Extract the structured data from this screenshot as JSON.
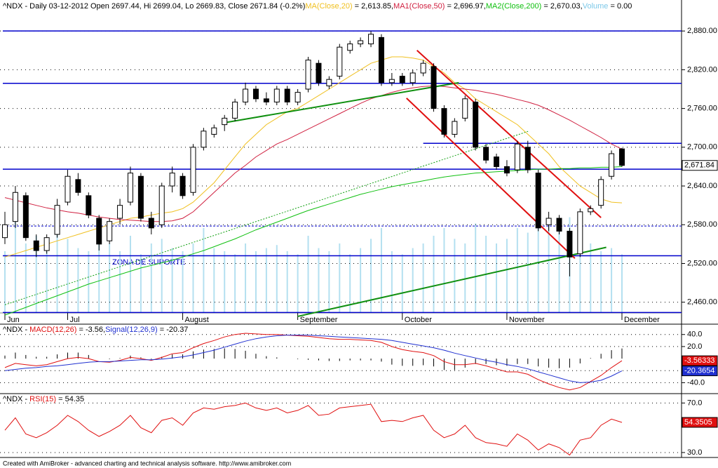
{
  "chart_data": [
    {
      "type": "candlestick",
      "title": "^NDX - Daily 03-12-2012 Open 2697.44, Hi 2699.04, Lo 2669.83, Close 2671.84 (-0.2%)",
      "categories": [
        "Jun",
        null,
        null,
        null,
        null,
        null,
        "Jul",
        null,
        null,
        null,
        null,
        null,
        null,
        null,
        null,
        null,
        null,
        "August",
        null,
        null,
        null,
        null,
        null,
        null,
        null,
        null,
        null,
        null,
        "September",
        null,
        null,
        null,
        null,
        null,
        null,
        null,
        null,
        null,
        "October",
        null,
        null,
        null,
        null,
        null,
        null,
        null,
        null,
        null,
        "November",
        null,
        null,
        null,
        null,
        null,
        null,
        null,
        null,
        null,
        null,
        "December"
      ],
      "open": [
        2560,
        2585,
        2625,
        2555,
        2540,
        2565,
        2615,
        2650,
        2625,
        2590,
        2555,
        2590,
        2615,
        2655,
        2590,
        2580,
        2640,
        2655,
        2630,
        2700,
        2720,
        2735,
        2745,
        2770,
        2790,
        2775,
        2770,
        2790,
        2770,
        2790,
        2830,
        2795,
        2810,
        2850,
        2860,
        2860,
        2870,
        2800,
        2810,
        2800,
        2815,
        2825,
        2760,
        2720,
        2745,
        2770,
        2700,
        2685,
        2670,
        2665,
        2700,
        2660,
        2580,
        2590,
        2570,
        2535,
        2600,
        2610,
        2655,
        2697.44
      ],
      "high": [
        2600,
        2640,
        2630,
        2565,
        2565,
        2620,
        2665,
        2660,
        2630,
        2595,
        2590,
        2620,
        2670,
        2660,
        2600,
        2645,
        2670,
        2660,
        2705,
        2730,
        2735,
        2750,
        2775,
        2800,
        2795,
        2785,
        2795,
        2795,
        2790,
        2840,
        2835,
        2810,
        2860,
        2865,
        2870,
        2880,
        2875,
        2815,
        2815,
        2820,
        2835,
        2830,
        2765,
        2745,
        2780,
        2775,
        2705,
        2690,
        2680,
        2710,
        2710,
        2665,
        2600,
        2595,
        2575,
        2605,
        2610,
        2655,
        2695,
        2699.04
      ],
      "low": [
        2550,
        2575,
        2555,
        2530,
        2535,
        2560,
        2610,
        2625,
        2590,
        2540,
        2550,
        2580,
        2610,
        2585,
        2565,
        2575,
        2630,
        2620,
        2625,
        2695,
        2715,
        2725,
        2740,
        2765,
        2770,
        2765,
        2765,
        2765,
        2765,
        2785,
        2795,
        2790,
        2805,
        2845,
        2855,
        2855,
        2795,
        2795,
        2795,
        2795,
        2810,
        2755,
        2715,
        2715,
        2740,
        2695,
        2675,
        2665,
        2655,
        2660,
        2660,
        2570,
        2570,
        2565,
        2500,
        2530,
        2595,
        2605,
        2650,
        2669.83
      ],
      "close": [
        2580,
        2630,
        2560,
        2540,
        2560,
        2610,
        2655,
        2630,
        2595,
        2550,
        2585,
        2610,
        2660,
        2590,
        2575,
        2640,
        2660,
        2625,
        2700,
        2725,
        2730,
        2745,
        2770,
        2790,
        2775,
        2770,
        2790,
        2770,
        2785,
        2835,
        2800,
        2805,
        2855,
        2860,
        2865,
        2875,
        2800,
        2805,
        2800,
        2815,
        2830,
        2760,
        2720,
        2740,
        2775,
        2700,
        2680,
        2670,
        2660,
        2705,
        2665,
        2575,
        2590,
        2570,
        2530,
        2600,
        2605,
        2650,
        2690,
        2671.84
      ],
      "last_value_label": "2,671.84",
      "color_up": "#ffffff",
      "color_down": "#000000",
      "overlays": [
        {
          "name": "MA(Close,20)",
          "legend_value": " = 2,613.85,",
          "color": "#f0c020",
          "values": [
            2530,
            2535,
            2540,
            2545,
            2550,
            2555,
            2560,
            2565,
            2570,
            2575,
            2580,
            2585,
            2590,
            2592,
            2595,
            2598,
            2600,
            2605,
            2615,
            2630,
            2645,
            2665,
            2685,
            2705,
            2720,
            2735,
            2745,
            2755,
            2760,
            2770,
            2780,
            2790,
            2800,
            2810,
            2820,
            2830,
            2835,
            2840,
            2840,
            2838,
            2835,
            2825,
            2815,
            2800,
            2790,
            2775,
            2765,
            2755,
            2745,
            2735,
            2720,
            2705,
            2690,
            2670,
            2655,
            2640,
            2630,
            2620,
            2615,
            2613.85
          ]
        },
        {
          "name": "MA1(Close,50)",
          "legend_value": " = 2,696.97,",
          "color": "#d02040",
          "values": [
            2622,
            2618,
            2614,
            2610,
            2606,
            2603,
            2600,
            2598,
            2595,
            2592,
            2590,
            2588,
            2587,
            2586,
            2585,
            2585,
            2586,
            2590,
            2600,
            2615,
            2630,
            2645,
            2660,
            2672,
            2685,
            2695,
            2705,
            2712,
            2720,
            2728,
            2736,
            2744,
            2752,
            2760,
            2768,
            2775,
            2780,
            2785,
            2789,
            2792,
            2794,
            2795,
            2794,
            2792,
            2790,
            2788,
            2785,
            2782,
            2778,
            2774,
            2770,
            2765,
            2758,
            2750,
            2742,
            2733,
            2724,
            2715,
            2705,
            2696.97
          ]
        },
        {
          "name": "MA2(Close,200)",
          "legend_value": " = 2,670.03,",
          "color": "#10c010",
          "values": [
            2440,
            2446,
            2452,
            2458,
            2464,
            2470,
            2476,
            2482,
            2488,
            2493,
            2498,
            2503,
            2508,
            2513,
            2517,
            2521,
            2525,
            2530,
            2535,
            2540,
            2546,
            2552,
            2558,
            2565,
            2572,
            2578,
            2584,
            2590,
            2596,
            2602,
            2607,
            2612,
            2617,
            2622,
            2627,
            2631,
            2635,
            2639,
            2642,
            2645,
            2648,
            2651,
            2654,
            2656,
            2658,
            2660,
            2661,
            2662,
            2663,
            2664,
            2665,
            2666,
            2666,
            2667,
            2667,
            2668,
            2668,
            2669,
            2669,
            2670.03
          ]
        }
      ],
      "volume": {
        "name": "Volume",
        "legend_value": " = 0.00",
        "color": "#b4e0f0",
        "lim": [
          0,
          100
        ],
        "values": [
          40,
          75,
          45,
          50,
          40,
          55,
          48,
          42,
          40,
          52,
          45,
          40,
          50,
          38,
          45,
          48,
          42,
          40,
          45,
          55,
          42,
          40,
          38,
          45,
          40,
          42,
          44,
          40,
          38,
          50,
          42,
          40,
          45,
          38,
          42,
          48,
          55,
          40,
          38,
          42,
          45,
          50,
          55,
          48,
          45,
          58,
          50,
          45,
          48,
          55,
          52,
          60,
          58,
          55,
          62,
          50,
          45,
          40,
          42,
          38
        ]
      },
      "levels": [
        {
          "value": 2880,
          "color": "#0000cc",
          "dash": false
        },
        {
          "value": 2799,
          "color": "#0000cc",
          "dash": false
        },
        {
          "value": 2666,
          "color": "#0000cc",
          "dash": false
        },
        {
          "value": 2578,
          "color": "#0000cc",
          "dash": true
        },
        {
          "value": 2532,
          "color": "#0000cc",
          "dash": false
        },
        {
          "value": 2444,
          "color": "#0000cc",
          "dash": false
        },
        {
          "value": 2706,
          "color": "#0000cc",
          "dash": false,
          "from": 40
        }
      ],
      "trendlines": [
        {
          "color": "#109010",
          "dash": false,
          "x": [
            21,
            43.4
          ],
          "values": [
            2738,
            2800
          ]
        },
        {
          "color": "#109010",
          "dash": false,
          "x": [
            28,
            57.5
          ],
          "values": [
            2438,
            2545
          ]
        },
        {
          "color": "#10a010",
          "dash": true,
          "x": [
            0,
            50.1
          ],
          "values": [
            2456,
            2725
          ]
        },
        {
          "color": "#e01010",
          "dash": false,
          "x": [
            39.4,
            57
          ],
          "values": [
            2850,
            2591
          ]
        },
        {
          "color": "#e01010",
          "dash": false,
          "x": [
            38.4,
            54.5
          ],
          "values": [
            2776,
            2528
          ]
        }
      ],
      "annotation": "ZONA DE SUPORTE",
      "ylim": [
        2426,
        2928
      ],
      "yticks": [
        {
          "value": 2460,
          "label": "2,460.00"
        },
        {
          "value": 2520,
          "label": "2,520.00"
        },
        {
          "value": 2580,
          "label": "2,580.00"
        },
        {
          "value": 2640,
          "label": "2,640.00"
        },
        {
          "value": 2700,
          "label": "2,700.00"
        },
        {
          "value": 2760,
          "label": "2,760.00"
        },
        {
          "value": 2820,
          "label": "2,820.00"
        },
        {
          "value": 2880,
          "label": "2,880.00"
        }
      ],
      "grid": true
    },
    {
      "type": "macd",
      "prefix": "^NDX - ",
      "series": [
        {
          "name": "MACD(12,26)",
          "legend_value": " = -3.56,",
          "color": "#e01010",
          "value_label": "-3.56333",
          "values": [
            -15,
            -8,
            -10,
            -12,
            -10,
            -5,
            0,
            2,
            0,
            -5,
            -6,
            -3,
            2,
            0,
            -3,
            2,
            8,
            10,
            18,
            25,
            30,
            36,
            40,
            42,
            41,
            40,
            40,
            39,
            38,
            37,
            35,
            33,
            32,
            32,
            31,
            30,
            27,
            20,
            15,
            12,
            10,
            5,
            -5,
            -10,
            -10,
            -8,
            -12,
            -17,
            -22,
            -22,
            -26,
            -35,
            -42,
            -48,
            -52,
            -48,
            -38,
            -28,
            -15,
            -3.56333
          ]
        },
        {
          "name": "Signal(12,26,9)",
          "legend_value": " = -20.37",
          "color": "#2030d0",
          "value_label": "-20.3654",
          "values": [
            -20,
            -18,
            -16,
            -15,
            -13,
            -12,
            -10,
            -8,
            -6,
            -5,
            -5,
            -4,
            -3,
            -2,
            -2,
            -1,
            1,
            3,
            6,
            10,
            14,
            19,
            24,
            29,
            33,
            36,
            38,
            39,
            39,
            39,
            38,
            37,
            36,
            35,
            34,
            33,
            32,
            30,
            27,
            24,
            21,
            18,
            14,
            9,
            5,
            1,
            -3,
            -6,
            -10,
            -13,
            -17,
            -22,
            -27,
            -32,
            -37,
            -40,
            -39,
            -36,
            -29,
            -20.3654
          ]
        }
      ],
      "histogram": {
        "color": "#000000",
        "values": [
          5,
          10,
          6,
          3,
          3,
          7,
          10,
          10,
          6,
          0,
          -1,
          1,
          5,
          2,
          -1,
          3,
          7,
          7,
          12,
          15,
          16,
          17,
          16,
          13,
          8,
          4,
          2,
          0,
          -1,
          -2,
          -3,
          -4,
          -4,
          -3,
          -3,
          -3,
          -5,
          -10,
          -12,
          -12,
          -11,
          -13,
          -19,
          -19,
          -15,
          -9,
          -9,
          -11,
          -12,
          -9,
          -9,
          -13,
          -15,
          -16,
          -15,
          -8,
          1,
          8,
          14,
          16.8
        ]
      },
      "ylim": [
        -57,
        56
      ],
      "yticks": [
        {
          "value": 40,
          "label": "40.0"
        },
        {
          "value": 20,
          "label": "20.0"
        },
        {
          "value": -20,
          "label": "-20.0"
        },
        {
          "value": -40,
          "label": "-40.0"
        }
      ],
      "grid": true
    },
    {
      "type": "line",
      "prefix": "^NDX - ",
      "series": [
        {
          "name": "RSI(15)",
          "legend_value": " = 54.35",
          "color": "#e01010",
          "value_label": "54.3505",
          "values": [
            48,
            58,
            45,
            42,
            46,
            52,
            60,
            55,
            48,
            43,
            47,
            52,
            60,
            50,
            46,
            56,
            58,
            52,
            62,
            66,
            65,
            67,
            68,
            70,
            66,
            64,
            66,
            62,
            64,
            68,
            60,
            61,
            66,
            67,
            68,
            69,
            55,
            56,
            55,
            58,
            60,
            48,
            42,
            45,
            52,
            42,
            38,
            37,
            35,
            45,
            40,
            32,
            37,
            34,
            28,
            40,
            42,
            52,
            57,
            54.3505
          ]
        }
      ],
      "ylim": [
        26,
        77
      ],
      "yticks": [
        {
          "value": 70,
          "label": "70.0"
        },
        {
          "value": 30,
          "label": "30.0"
        }
      ],
      "grid": true
    }
  ],
  "footer": "Created with AmiBroker - advanced charting and technical analysis software. http://www.amibroker.com"
}
